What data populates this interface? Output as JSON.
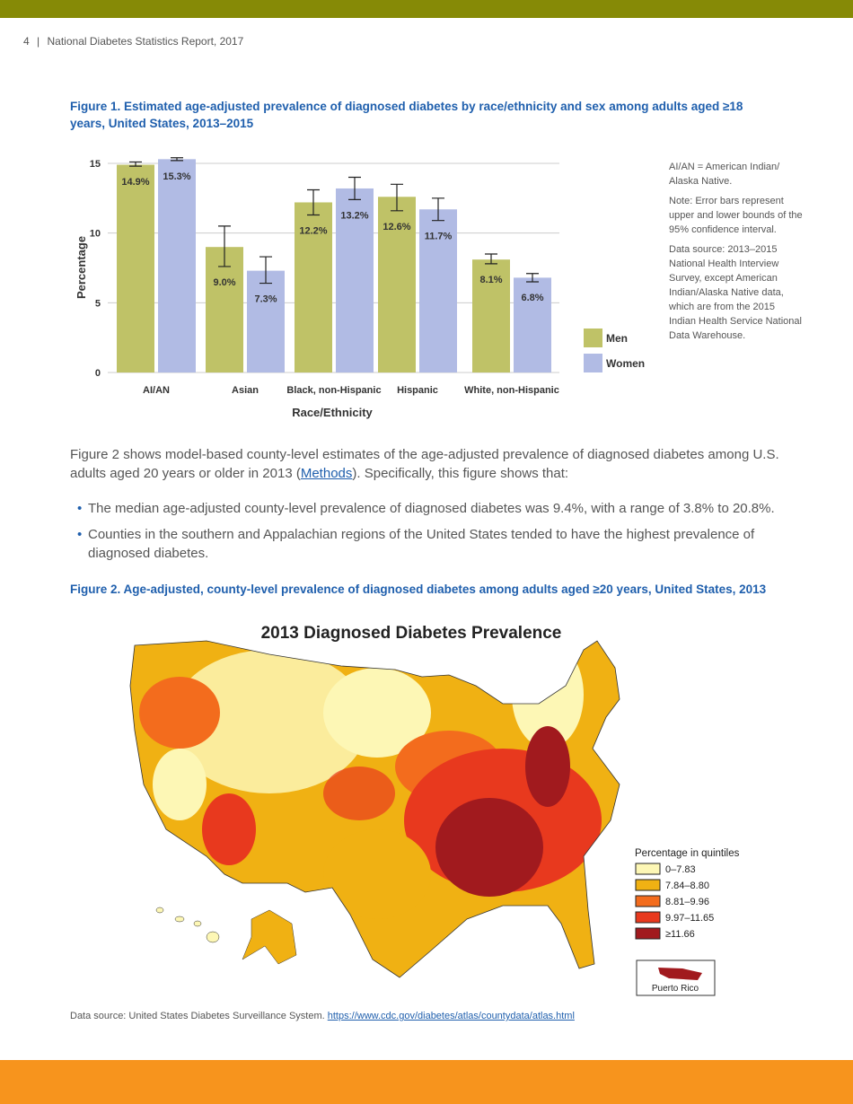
{
  "header": {
    "page": "4",
    "separator": "|",
    "title": "National Diabetes Statistics Report, 2017"
  },
  "figure1": {
    "title": "Figure 1. Estimated age-adjusted prevalence of diagnosed diabetes by race/ethnicity and sex among adults aged ≥18 years, United States, 2013–2015"
  },
  "notes": [
    "AI/AN = American Indian/ Alaska Native.",
    "Note: Error bars represent upper and lower bounds of the 95% confidence interval.",
    "Data source: 2013–2015 National Health Interview Survey, except American Indian/Alaska Native data, which are from the 2015 Indian Health Service National Data Warehouse."
  ],
  "chart_data": {
    "type": "bar",
    "title": "",
    "xlabel": "Race/Ethnicity",
    "ylabel": "Percentage",
    "ylim": [
      0,
      15
    ],
    "yticks": [
      "0",
      "5",
      "10",
      "15"
    ],
    "grid": true,
    "legend_placement": "bottom-right",
    "categories": [
      "AI/AN",
      "Asian",
      "Black, non-Hispanic",
      "Hispanic",
      "White, non-Hispanic"
    ],
    "series": [
      {
        "name": "Men",
        "color": "#bfc267",
        "values": [
          14.9,
          9.0,
          12.2,
          12.6,
          8.1
        ],
        "labels": [
          "14.9%",
          "9.0%",
          "12.2%",
          "12.6%",
          "8.1%"
        ],
        "ci_low": [
          14.8,
          7.6,
          11.3,
          11.6,
          7.8
        ],
        "ci_high": [
          15.1,
          10.5,
          13.1,
          13.5,
          8.5
        ]
      },
      {
        "name": "Women",
        "color": "#b1bbe4",
        "values": [
          15.3,
          7.3,
          13.2,
          11.7,
          6.8
        ],
        "labels": [
          "15.3%",
          "7.3%",
          "13.2%",
          "11.7%",
          "6.8%"
        ],
        "ci_low": [
          15.2,
          6.4,
          12.4,
          10.9,
          6.5
        ],
        "ci_high": [
          15.4,
          8.3,
          14.0,
          12.5,
          7.1
        ]
      }
    ]
  },
  "body": {
    "p1a": "Figure 2 shows model-based county-level estimates of the age-adjusted prevalence of diagnosed diabetes among U.S. adults aged 20 years or older in 2013 (",
    "p1link": "Methods",
    "p1b": "). Specifically, this figure shows that:",
    "bullets": [
      "The median age-adjusted county-level prevalence of diagnosed diabetes was 9.4%, with a range of 3.8% to 20.8%.",
      "Counties in the southern and Appalachian regions of the United States tended to have the highest prevalence of diagnosed diabetes."
    ],
    "bullet_mark": "•"
  },
  "figure2": {
    "title": "Figure 2. Age-adjusted, county-level prevalence of diagnosed diabetes among adults aged ≥20 years, United States, 2013",
    "map_title": "2013 Diagnosed Diabetes Prevalence",
    "legend_title": "Percentage in quintiles",
    "legend": [
      {
        "label": "0–7.83",
        "color": "#fdf7b5"
      },
      {
        "label": "7.84–8.80",
        "color": "#f0b113"
      },
      {
        "label": "8.81–9.96",
        "color": "#f36c1d"
      },
      {
        "label": "9.97–11.65",
        "color": "#e8391e"
      },
      {
        "label": "≥11.66",
        "color": "#a11a1e"
      }
    ],
    "inset": "Puerto Rico"
  },
  "source": {
    "text": "Data source: United States Diabetes Surveillance System. ",
    "link": "https://www.cdc.gov/diabetes/atlas/countydata/atlas.html"
  }
}
